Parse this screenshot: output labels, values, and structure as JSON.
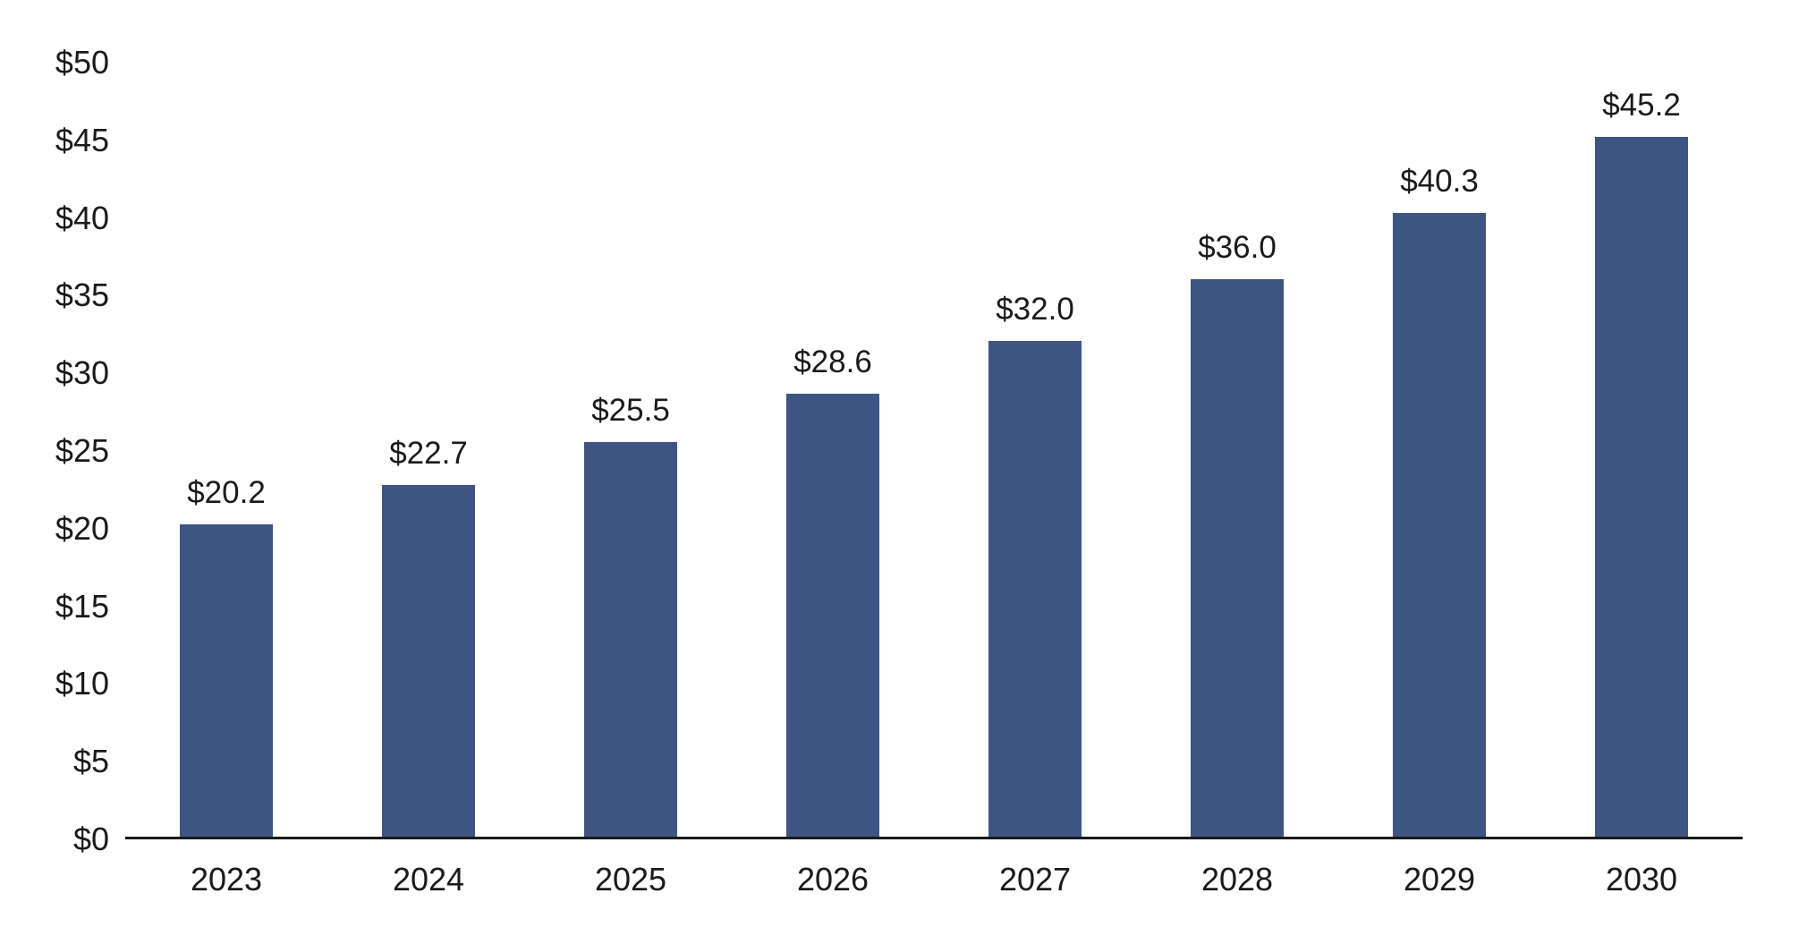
{
  "chart_data": {
    "type": "bar",
    "title": "",
    "xlabel": "",
    "ylabel": "",
    "categories": [
      "2023",
      "2024",
      "2025",
      "2026",
      "2027",
      "2028",
      "2029",
      "2030"
    ],
    "values": [
      20.2,
      22.7,
      25.5,
      28.6,
      32.0,
      36.0,
      40.3,
      45.2
    ],
    "value_labels": [
      "$20.2",
      "$22.7",
      "$25.5",
      "$28.6",
      "$32.0",
      "$36.0",
      "$40.3",
      "$45.2"
    ],
    "y_ticks": [
      {
        "value": 0,
        "label": "$0"
      },
      {
        "value": 5,
        "label": "$5"
      },
      {
        "value": 10,
        "label": "$10"
      },
      {
        "value": 15,
        "label": "$15"
      },
      {
        "value": 20,
        "label": "$20"
      },
      {
        "value": 25,
        "label": "$25"
      },
      {
        "value": 30,
        "label": "$30"
      },
      {
        "value": 35,
        "label": "$35"
      },
      {
        "value": 40,
        "label": "$40"
      },
      {
        "value": 45,
        "label": "$45"
      },
      {
        "value": 50,
        "label": "$50"
      }
    ],
    "ylim": [
      0,
      50
    ],
    "grid": false,
    "legend": false,
    "bar_color": "#3E5482",
    "axis_color": "#1a1a1a",
    "background_color": "#ffffff"
  }
}
